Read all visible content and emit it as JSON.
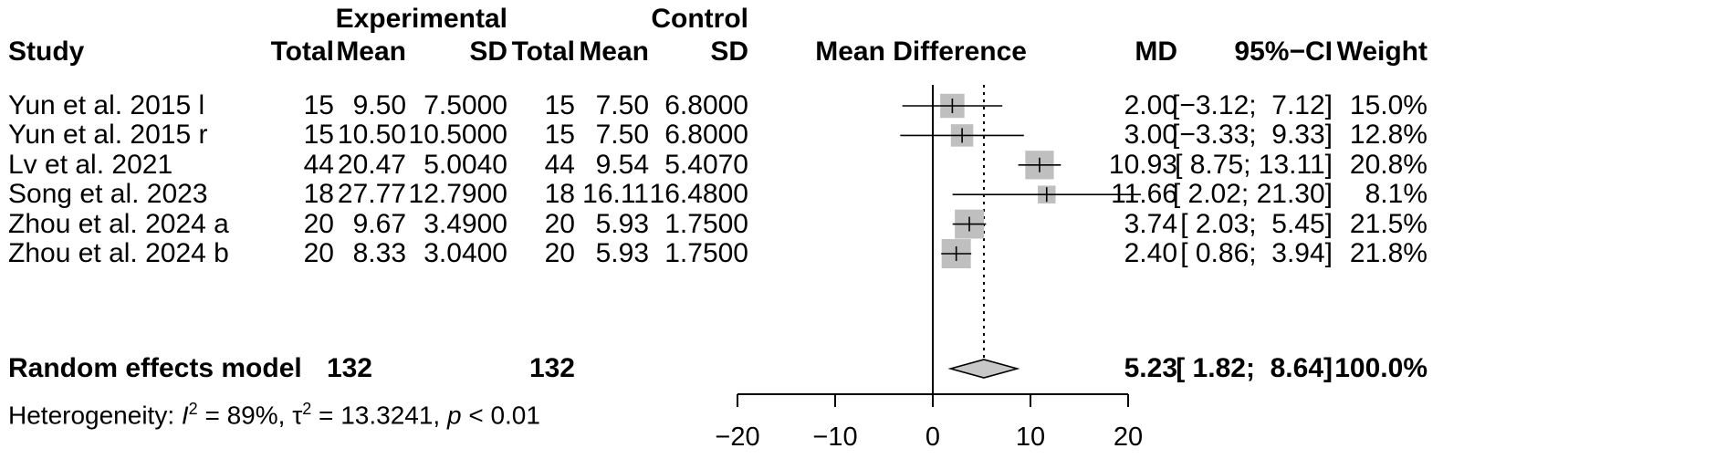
{
  "headers": {
    "group_experimental": "Experimental",
    "group_control": "Control",
    "study": "Study",
    "exp_total": "Total",
    "exp_mean": "Mean",
    "exp_sd": "SD",
    "ctrl_total": "Total",
    "ctrl_mean": "Mean",
    "ctrl_sd": "SD",
    "plot": "Mean Difference",
    "md": "MD",
    "ci": "95%−CI",
    "weight": "Weight"
  },
  "studies": [
    {
      "study": "Yun et al. 2015 l",
      "e_total": "15",
      "e_mean": "9.50",
      "e_sd": "7.5000",
      "c_total": "15",
      "c_mean": "7.50",
      "c_sd": "6.8000",
      "md_text": "2.00",
      "ci_text": "[−3.12;  7.12]",
      "weight_text": "15.0%",
      "md": 2.0,
      "lower": -3.12,
      "upper": 7.12,
      "weight": 15.0
    },
    {
      "study": "Yun et al. 2015 r",
      "e_total": "15",
      "e_mean": "10.50",
      "e_sd": "10.5000",
      "c_total": "15",
      "c_mean": "7.50",
      "c_sd": "6.8000",
      "md_text": "3.00",
      "ci_text": "[−3.33;  9.33]",
      "weight_text": "12.8%",
      "md": 3.0,
      "lower": -3.33,
      "upper": 9.33,
      "weight": 12.8
    },
    {
      "study": "Lv et al. 2021",
      "e_total": "44",
      "e_mean": "20.47",
      "e_sd": "5.0040",
      "c_total": "44",
      "c_mean": "9.54",
      "c_sd": "5.4070",
      "md_text": "10.93",
      "ci_text": "[ 8.75; 13.11]",
      "weight_text": "20.8%",
      "md": 10.93,
      "lower": 8.75,
      "upper": 13.11,
      "weight": 20.8
    },
    {
      "study": "Song et al. 2023",
      "e_total": "18",
      "e_mean": "27.77",
      "e_sd": "12.7900",
      "c_total": "18",
      "c_mean": "16.11",
      "c_sd": "16.4800",
      "md_text": "11.66",
      "ci_text": "[ 2.02; 21.30]",
      "weight_text": "8.1%",
      "md": 11.66,
      "lower": 2.02,
      "upper": 21.3,
      "weight": 8.1
    },
    {
      "study": "Zhou et al. 2024 a",
      "e_total": "20",
      "e_mean": "9.67",
      "e_sd": "3.4900",
      "c_total": "20",
      "c_mean": "5.93",
      "c_sd": "1.7500",
      "md_text": "3.74",
      "ci_text": "[ 2.03;  5.45]",
      "weight_text": "21.5%",
      "md": 3.74,
      "lower": 2.03,
      "upper": 5.45,
      "weight": 21.5
    },
    {
      "study": "Zhou et al. 2024 b",
      "e_total": "20",
      "e_mean": "8.33",
      "e_sd": "3.0400",
      "c_total": "20",
      "c_mean": "5.93",
      "c_sd": "1.7500",
      "md_text": "2.40",
      "ci_text": "[ 0.86;  3.94]",
      "weight_text": "21.8%",
      "md": 2.4,
      "lower": 0.86,
      "upper": 3.94,
      "weight": 21.8
    }
  ],
  "pooled": {
    "label": "Random effects model",
    "e_total": "132",
    "c_total": "132",
    "md_text": "5.23",
    "ci_text": "[ 1.82;  8.64]",
    "weight_text": "100.0%",
    "md": 5.23,
    "lower": 1.82,
    "upper": 8.64
  },
  "heterogeneity": {
    "prefix": "Heterogeneity: ",
    "i2_symbol": "I",
    "i2_value": " = 89%, ",
    "tau2_symbol": "τ",
    "tau2_value": " = 13.3241, ",
    "p_symbol": "p",
    "p_value": " < 0.01",
    "sup": "2"
  },
  "chart_data": {
    "type": "forest",
    "xlim": [
      -20,
      20
    ],
    "ticks": [
      -20,
      -10,
      0,
      10,
      20
    ],
    "tick_labels": [
      "−20",
      "−10",
      "0",
      "10",
      "20"
    ],
    "null_line": 0,
    "pooled_line": 5.23,
    "colors": {
      "square": "#bfbfbf",
      "diamond": "#c8c8c8",
      "line": "#000000"
    }
  }
}
